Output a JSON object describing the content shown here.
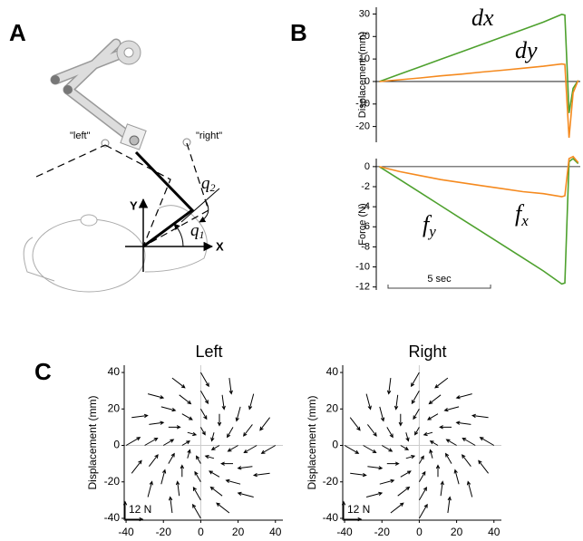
{
  "panel_a": {
    "label": "A",
    "left": "\"left\"",
    "right": "\"right\"",
    "y_axis": "Y",
    "x_axis": "X",
    "q2": {
      "text": "q",
      "sub": "2"
    },
    "q1": {
      "text": "q",
      "sub": "1"
    }
  },
  "chart_data": [
    {
      "type": "line",
      "panel_label": "B",
      "ylabel": "Displacement (mm)",
      "x": [
        0,
        1,
        2,
        3,
        4,
        5,
        6,
        7,
        8,
        8.9,
        9.05,
        9.25,
        9.45,
        9.7
      ],
      "xlim": [
        -0.15,
        9.8
      ],
      "ylim": [
        -27,
        33
      ],
      "yticks": [
        -20,
        -10,
        0,
        10,
        20,
        30
      ],
      "series": [
        {
          "name": "dx",
          "color": "#4ea12e",
          "values": [
            0,
            3.3,
            6.6,
            9.9,
            13.2,
            16.5,
            19.8,
            23.1,
            26.4,
            29.8,
            29.5,
            -14,
            -3,
            0.5
          ]
        },
        {
          "name": "dy",
          "color": "#f58a1f",
          "values": [
            0,
            0.8,
            1.6,
            2.5,
            3.3,
            4.2,
            5.0,
            5.9,
            6.8,
            7.8,
            7.6,
            -25,
            -5,
            0.5
          ]
        }
      ]
    },
    {
      "type": "line",
      "ylabel": "Force (N)",
      "x": [
        0,
        1,
        2,
        3,
        4,
        5,
        6,
        7,
        8,
        8.9,
        9.05,
        9.25,
        9.45,
        9.7
      ],
      "xlim": [
        -0.15,
        9.8
      ],
      "ylim": [
        -12.3,
        0.8
      ],
      "yticks": [
        -12,
        -10,
        -8,
        -6,
        -4,
        -2,
        0
      ],
      "scale_bar": {
        "label": "5 sec",
        "length": 5
      },
      "series": [
        {
          "name": "f",
          "name_sub": "y",
          "color": "#4ea12e",
          "values": [
            0,
            -1.3,
            -2.6,
            -3.9,
            -5.2,
            -6.5,
            -7.8,
            -9.1,
            -10.4,
            -11.7,
            -11.6,
            0.5,
            0.8,
            0.3
          ]
        },
        {
          "name": "f",
          "name_sub": "x",
          "color": "#f58a1f",
          "values": [
            0,
            -0.5,
            -0.9,
            -1.3,
            -1.6,
            -1.9,
            -2.2,
            -2.5,
            -2.7,
            -3.0,
            -2.9,
            0.8,
            1.0,
            0.4
          ]
        }
      ]
    },
    {
      "type": "quiver",
      "panel_label": "C",
      "title": "Left",
      "ylabel": "Displacement (mm)",
      "xlim": [
        -41,
        44
      ],
      "ylim": [
        -41,
        44
      ],
      "xticks": [
        -40,
        -20,
        0,
        20,
        40
      ],
      "yticks": [
        -40,
        -20,
        0,
        20,
        40
      ],
      "scale_bar": {
        "label": "12 N",
        "length": 12
      },
      "x": [
        10,
        7.1,
        0,
        -7.1,
        -10,
        -7.1,
        0,
        7.1,
        20,
        17.3,
        10,
        0,
        -10,
        -17.3,
        -20,
        -17.3,
        -10,
        0,
        10,
        17.3,
        30,
        27.7,
        21.2,
        11.5,
        0,
        -11.5,
        -21.2,
        -27.7,
        -30,
        -27.7,
        -21.2,
        -11.5,
        0,
        11.5,
        21.2,
        27.7,
        40,
        37,
        28.3,
        15.3,
        0,
        -15.3,
        -28.3,
        -37,
        -40,
        -37,
        -28.3,
        -15.3,
        0,
        15.3,
        28.3,
        37
      ],
      "y": [
        0,
        7.1,
        10,
        7.1,
        0,
        -7.1,
        -10,
        -7.1,
        0,
        10,
        17.3,
        20,
        17.3,
        10,
        0,
        -10,
        -17.3,
        -20,
        -17.3,
        -10,
        0,
        11.5,
        21.2,
        27.7,
        30,
        27.7,
        21.2,
        11.5,
        0,
        -11.5,
        -21.2,
        -27.7,
        -30,
        -27.7,
        -21.2,
        -11.5,
        0,
        15.3,
        28.3,
        37,
        40,
        37,
        28.3,
        15.3,
        0,
        -15.3,
        -28.3,
        -37,
        -40,
        -37,
        -28.3,
        -15.3
      ],
      "u": [
        -5.2,
        -1.6,
        3.0,
        5.8,
        5.2,
        1.6,
        -3.0,
        -5.8,
        -6.9,
        -4.0,
        0,
        4.0,
        6.9,
        8,
        6.9,
        4.0,
        0,
        -4.0,
        -6.9,
        -8,
        -8.7,
        -6.1,
        -2.6,
        1.3,
        5.0,
        7.9,
        9.7,
        9.9,
        8.7,
        6.1,
        2.6,
        -1.3,
        -5.0,
        -7.9,
        -9.7,
        -9.9,
        -9.5,
        -6.7,
        -2.8,
        1.4,
        5.5,
        8.7,
        10.6,
        10.9,
        9.5,
        6.7,
        2.8,
        -1.4,
        -5.5,
        -8.7,
        -10.6,
        -10.9
      ],
      "v": [
        -3.0,
        -5.8,
        -5.2,
        -1.6,
        3.0,
        5.8,
        5.2,
        1.6,
        -4.0,
        -6.9,
        -8,
        -6.9,
        -4.0,
        0,
        4.0,
        6.9,
        8,
        6.9,
        4.0,
        0,
        -5.0,
        -7.9,
        -9.7,
        -9.9,
        -8.7,
        -6.1,
        -2.6,
        1.3,
        5.0,
        7.9,
        9.7,
        9.9,
        8.7,
        6.1,
        2.6,
        -1.3,
        -5.5,
        -8.7,
        -10.6,
        -10.9,
        -9.5,
        -6.7,
        -2.8,
        1.4,
        5.5,
        8.7,
        10.6,
        10.9,
        9.5,
        6.7,
        2.8,
        -1.4
      ]
    },
    {
      "type": "quiver",
      "title": "Right",
      "ylabel": "Displacement (mm)",
      "xlim": [
        -41,
        44
      ],
      "ylim": [
        -41,
        44
      ],
      "xticks": [
        -40,
        -20,
        0,
        20,
        40
      ],
      "yticks": [
        -40,
        -20,
        0,
        20,
        40
      ],
      "scale_bar": {
        "label": "12 N",
        "length": 12
      },
      "x": [
        10,
        7.1,
        0,
        -7.1,
        -10,
        -7.1,
        0,
        7.1,
        20,
        17.3,
        10,
        0,
        -10,
        -17.3,
        -20,
        -17.3,
        -10,
        0,
        10,
        17.3,
        30,
        27.7,
        21.2,
        11.5,
        0,
        -11.5,
        -21.2,
        -27.7,
        -30,
        -27.7,
        -21.2,
        -11.5,
        0,
        11.5,
        21.2,
        27.7,
        40,
        37,
        28.3,
        15.3,
        0,
        -15.3,
        -28.3,
        -37,
        -40,
        -37,
        -28.3,
        -15.3,
        0,
        15.3,
        28.3,
        37
      ],
      "y": [
        0,
        7.1,
        10,
        7.1,
        0,
        -7.1,
        -10,
        -7.1,
        0,
        10,
        17.3,
        20,
        17.3,
        10,
        0,
        -10,
        -17.3,
        -20,
        -17.3,
        -10,
        0,
        11.5,
        21.2,
        27.7,
        30,
        27.7,
        21.2,
        11.5,
        0,
        -11.5,
        -21.2,
        -27.7,
        -30,
        -27.7,
        -21.2,
        -11.5,
        0,
        15.3,
        28.3,
        37,
        40,
        37,
        28.3,
        15.3,
        0,
        -15.3,
        -28.3,
        -37,
        -40,
        -37,
        -28.3,
        -15.3
      ],
      "u": [
        -5.2,
        -5.8,
        -3.0,
        1.6,
        5.2,
        5.8,
        3.0,
        -1.6,
        -6.9,
        -8,
        -6.9,
        -4.0,
        0,
        4.0,
        6.9,
        8,
        6.9,
        4.0,
        0,
        -4.0,
        -8.7,
        -9.9,
        -9.7,
        -7.9,
        -5.0,
        -1.3,
        2.6,
        6.1,
        8.7,
        9.9,
        9.7,
        7.9,
        5.0,
        1.3,
        -2.6,
        -6.1,
        -9.5,
        -10.9,
        -10.6,
        -8.7,
        -5.5,
        -1.4,
        2.8,
        6.7,
        9.5,
        10.9,
        10.6,
        8.7,
        5.5,
        1.4,
        -2.8,
        -6.7
      ],
      "v": [
        3.0,
        -1.6,
        -5.2,
        -5.8,
        -3.0,
        1.6,
        5.2,
        5.8,
        4.0,
        0,
        -4.0,
        -6.9,
        -8,
        -6.9,
        -4.0,
        0,
        4.0,
        6.9,
        8,
        6.9,
        5.0,
        1.3,
        -2.6,
        -6.1,
        -8.7,
        -9.9,
        -9.7,
        -7.9,
        -5.0,
        -1.3,
        2.6,
        6.1,
        8.7,
        9.9,
        9.7,
        7.9,
        5.5,
        1.4,
        -2.8,
        -6.7,
        -9.5,
        -10.9,
        -10.6,
        -8.7,
        -5.5,
        -1.4,
        2.8,
        6.7,
        9.5,
        10.9,
        10.6,
        8.7
      ]
    }
  ]
}
